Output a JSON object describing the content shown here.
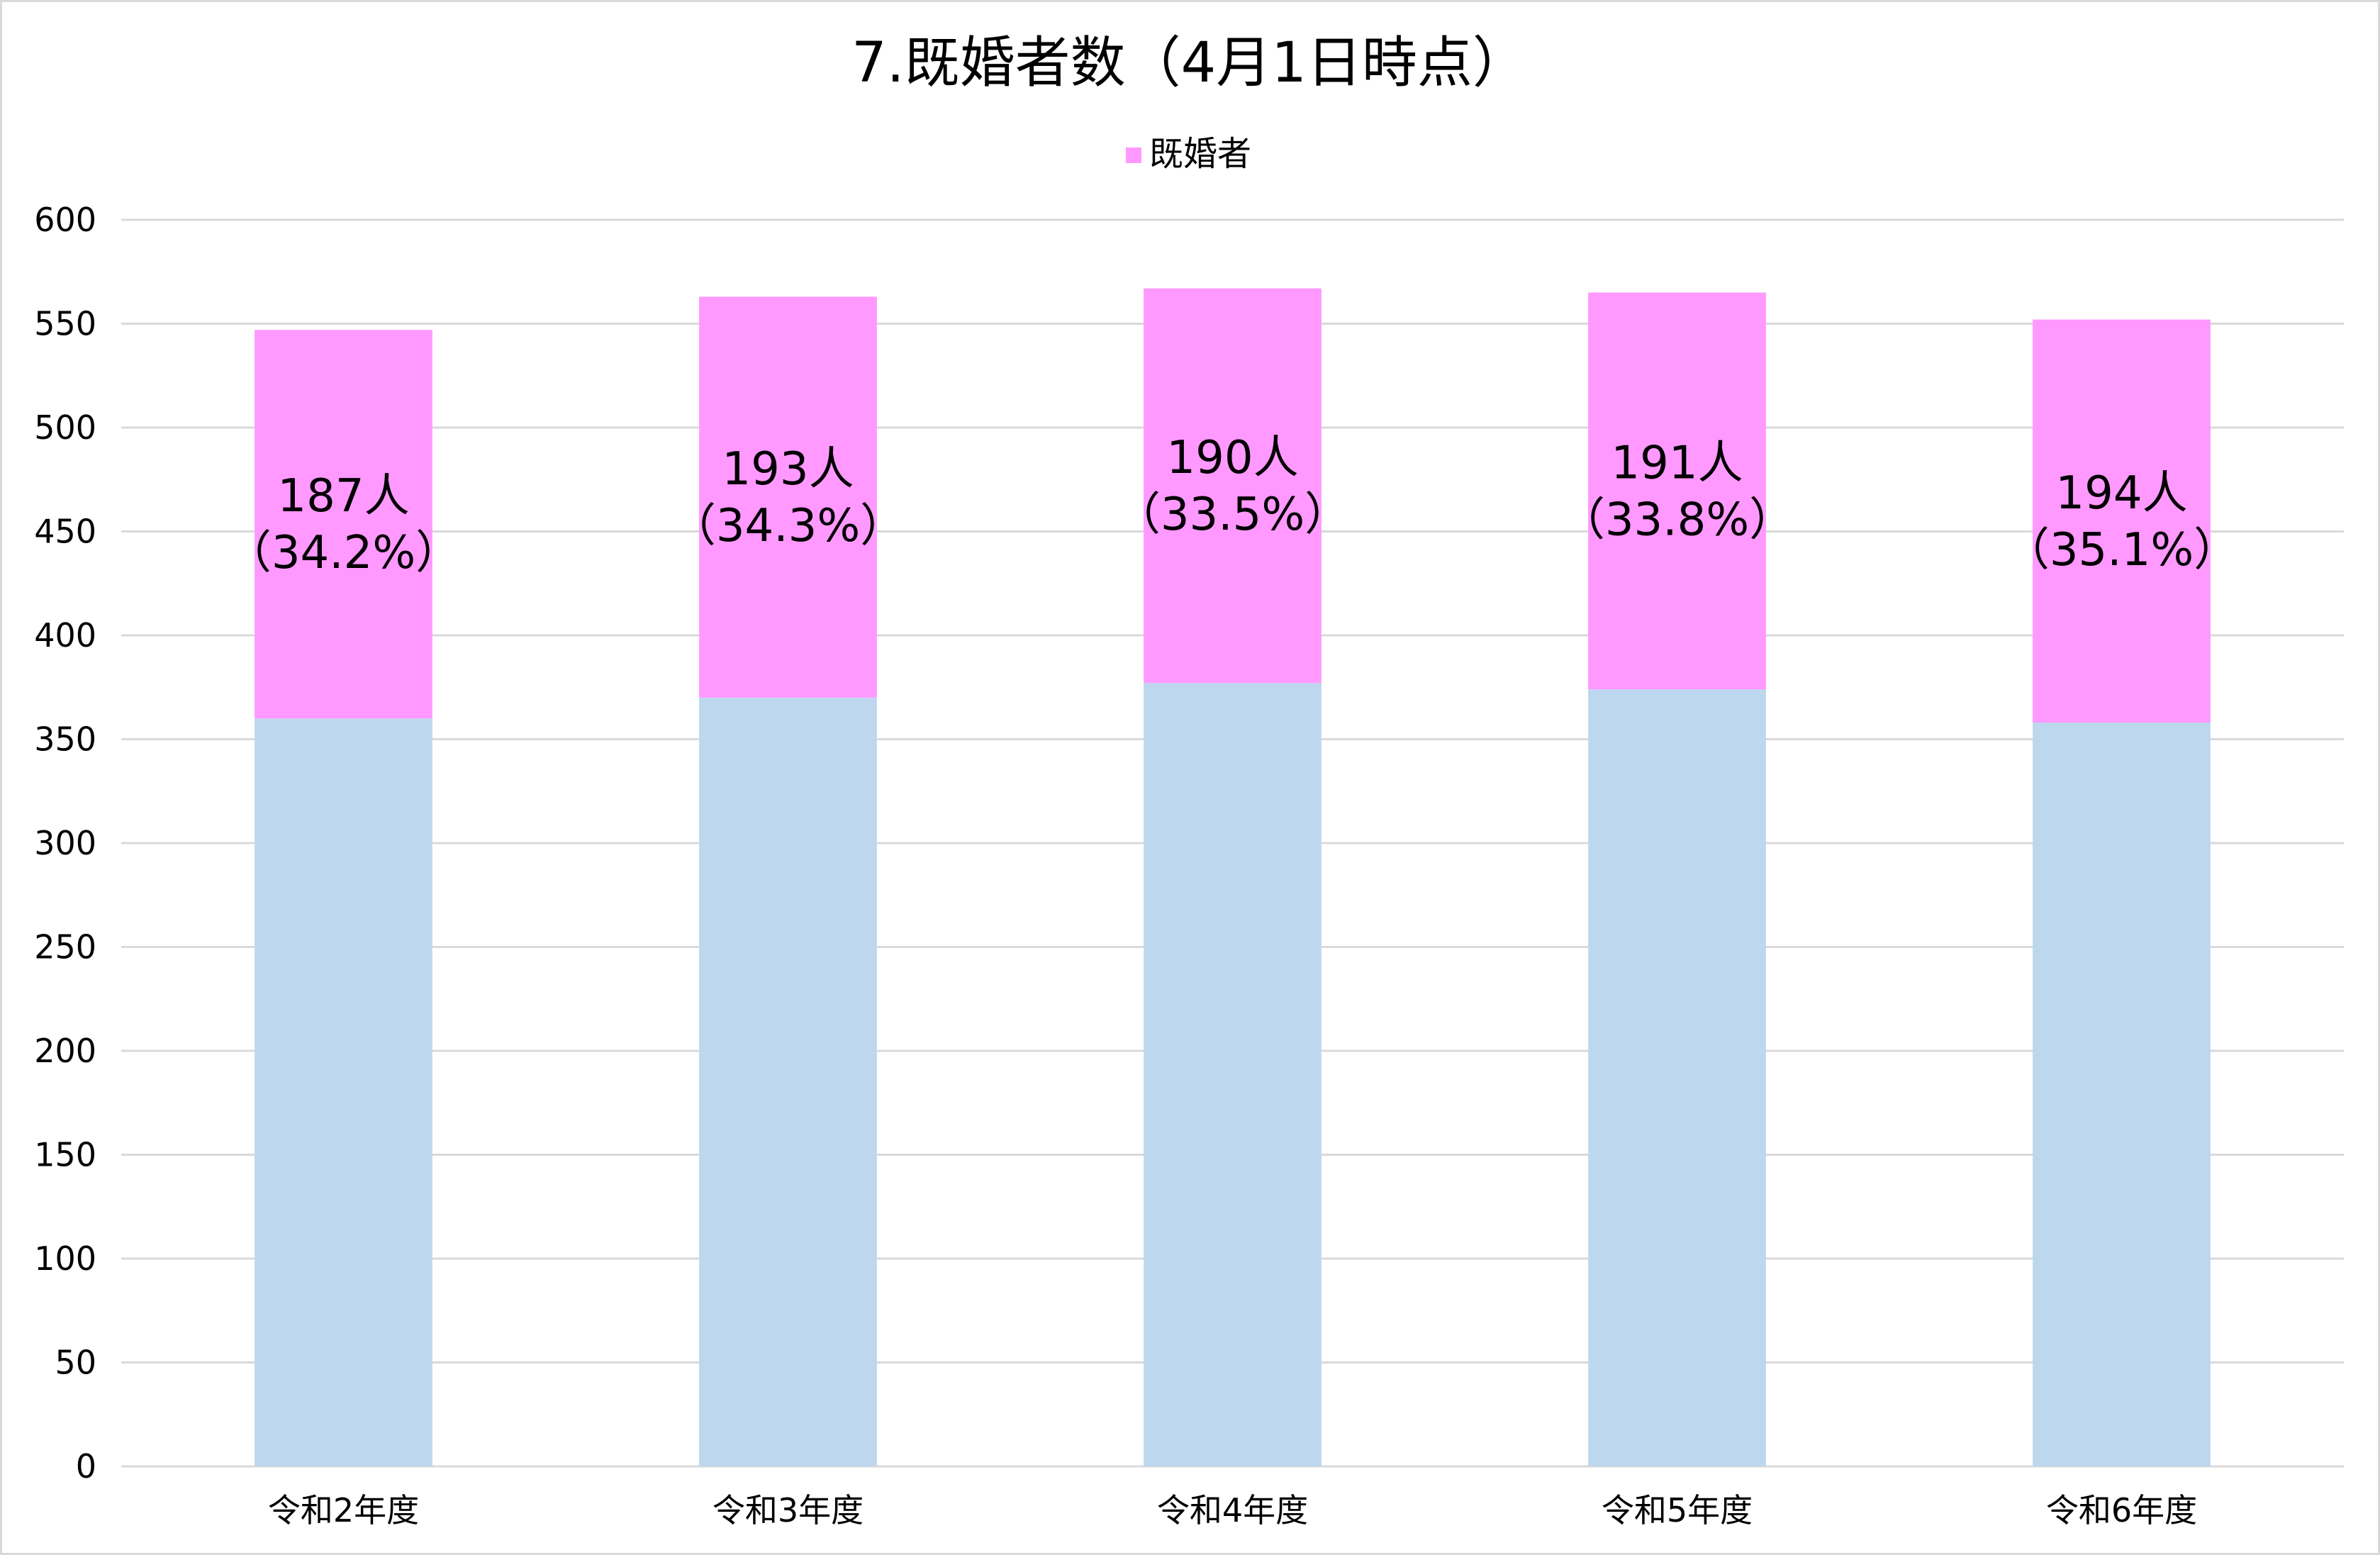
{
  "chart_data": {
    "type": "bar",
    "stacked": true,
    "title": "7.既婚者数（4月1日時点）",
    "legend": {
      "position": "top",
      "entries": [
        {
          "label": "既婚者",
          "color": "#ff99ff"
        }
      ]
    },
    "categories": [
      "令和2年度",
      "令和3年度",
      "令和4年度",
      "令和5年度",
      "令和6年度"
    ],
    "series": [
      {
        "values": [
          360,
          370,
          377,
          374,
          358
        ],
        "color": "#bdd7ee"
      },
      {
        "name": "既婚者",
        "values": [
          187,
          193,
          190,
          191,
          194
        ],
        "color": "#ff99ff"
      }
    ],
    "data_labels": [
      {
        "line1": "187人",
        "line2": "（34.2%）"
      },
      {
        "line1": "193人",
        "line2": "（34.3%）"
      },
      {
        "line1": "190人",
        "line2": "（33.5%）"
      },
      {
        "line1": "191人",
        "line2": "（33.8%）"
      },
      {
        "line1": "194人",
        "line2": "（35.1%）"
      }
    ],
    "ylim": [
      0,
      600
    ],
    "yticks": [
      "0",
      "50",
      "100",
      "150",
      "200",
      "250",
      "300",
      "350",
      "400",
      "450",
      "500",
      "550",
      "600"
    ],
    "grid": true,
    "gridline_color": "#d9d9d9",
    "xlabel": "",
    "ylabel": ""
  }
}
